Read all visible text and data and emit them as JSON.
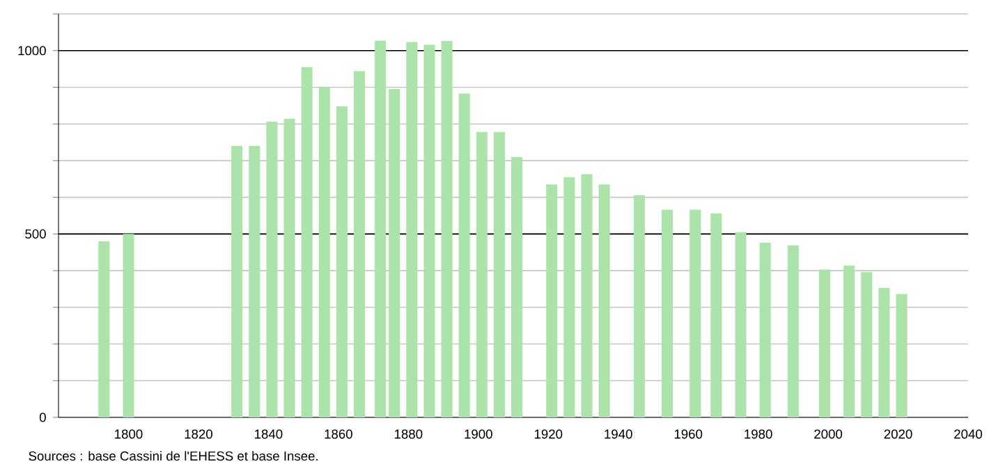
{
  "chart_data": {
    "type": "bar",
    "x": [
      1793,
      1800,
      1831,
      1836,
      1841,
      1846,
      1851,
      1856,
      1861,
      1866,
      1872,
      1876,
      1881,
      1886,
      1891,
      1896,
      1901,
      1906,
      1911,
      1921,
      1926,
      1931,
      1936,
      1946,
      1954,
      1962,
      1968,
      1975,
      1982,
      1990,
      1999,
      2006,
      2011,
      2016,
      2021
    ],
    "values": [
      480,
      500,
      740,
      740,
      806,
      814,
      955,
      899,
      848,
      944,
      1027,
      895,
      1023,
      1016,
      1026,
      883,
      778,
      778,
      710,
      635,
      655,
      663,
      635,
      606,
      566,
      566,
      556,
      505,
      476,
      469,
      403,
      414,
      396,
      353,
      336
    ],
    "color": "#abe3ab",
    "xlim": [
      1780,
      2040
    ],
    "xticks": [
      1800,
      1820,
      1840,
      1860,
      1880,
      1900,
      1920,
      1940,
      1960,
      1980,
      2000,
      2020,
      2040
    ],
    "ylim": [
      0,
      1100
    ],
    "yticks": [
      0,
      {
        "value": 100,
        "label": null
      },
      {
        "value": 200,
        "label": null
      },
      {
        "value": 300,
        "label": null
      },
      {
        "value": 400,
        "label": null
      },
      500,
      {
        "value": 600,
        "label": null
      },
      {
        "value": 700,
        "label": null
      },
      {
        "value": 800,
        "label": null
      },
      {
        "value": 900,
        "label": null
      },
      1000,
      {
        "value": 1100,
        "label": null
      }
    ],
    "grid": "y",
    "annotations": [
      "Sources : base Cassini de l'EHESS et base Insee."
    ]
  }
}
